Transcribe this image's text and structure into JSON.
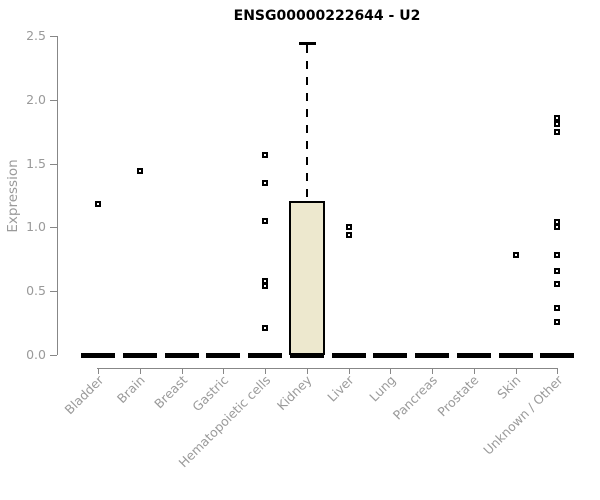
{
  "title": "ENSG00000222644 - U2",
  "colors": {
    "box_fill": "#EDE8CE",
    "box_border": "#000000",
    "median_bar": "#000000",
    "axis_line": "#878787",
    "axis_text": "#9a9a9a",
    "title_text": "#000000",
    "background": "#ffffff"
  },
  "chart_data": {
    "type": "boxplot",
    "title": "ENSG00000222644 - U2",
    "xlabel": "",
    "ylabel": "Expression",
    "ylim": [
      0,
      2.5
    ],
    "yticks": [
      0.0,
      0.5,
      1.0,
      1.5,
      2.0,
      2.5
    ],
    "grid": "off",
    "legend": "none",
    "x_tick_label_rotation_deg": 45,
    "categories": [
      "Bladder",
      "Brain",
      "Breast",
      "Gastric",
      "Hematopoietic cells",
      "Kidney",
      "Liver",
      "Lung",
      "Pancreas",
      "Prostate",
      "Skin",
      "Unknown / Other"
    ],
    "series": [
      {
        "category": "Bladder",
        "median": 0,
        "q1": 0,
        "q3": 0,
        "whisker_high": 0,
        "outliers": [
          1.18
        ]
      },
      {
        "category": "Brain",
        "median": 0,
        "q1": 0,
        "q3": 0,
        "whisker_high": 0,
        "outliers": [
          1.44
        ]
      },
      {
        "category": "Breast",
        "median": 0,
        "q1": 0,
        "q3": 0,
        "whisker_high": 0,
        "outliers": []
      },
      {
        "category": "Gastric",
        "median": 0,
        "q1": 0,
        "q3": 0,
        "whisker_high": 0,
        "outliers": []
      },
      {
        "category": "Hematopoietic cells",
        "median": 0,
        "q1": 0,
        "q3": 0,
        "whisker_high": 0,
        "outliers": [
          1.57,
          1.35,
          1.05,
          0.58,
          0.54,
          0.21
        ]
      },
      {
        "category": "Kidney",
        "median": 0,
        "q1": 0,
        "q3": 1.21,
        "whisker_high": 2.45,
        "outliers": []
      },
      {
        "category": "Liver",
        "median": 0,
        "q1": 0,
        "q3": 0,
        "whisker_high": 0,
        "outliers": [
          1.0,
          0.94
        ]
      },
      {
        "category": "Lung",
        "median": 0,
        "q1": 0,
        "q3": 0,
        "whisker_high": 0,
        "outliers": []
      },
      {
        "category": "Pancreas",
        "median": 0,
        "q1": 0,
        "q3": 0,
        "whisker_high": 0,
        "outliers": []
      },
      {
        "category": "Prostate",
        "median": 0,
        "q1": 0,
        "q3": 0,
        "whisker_high": 0,
        "outliers": []
      },
      {
        "category": "Skin",
        "median": 0,
        "q1": 0,
        "q3": 0,
        "whisker_high": 0,
        "outliers": [
          0.78
        ]
      },
      {
        "category": "Unknown / Other",
        "median": 0,
        "q1": 0,
        "q3": 0,
        "whisker_high": 0,
        "outliers": [
          1.86,
          1.81,
          1.75,
          1.04,
          1.0,
          0.78,
          0.66,
          0.56,
          0.37,
          0.26
        ]
      }
    ]
  }
}
